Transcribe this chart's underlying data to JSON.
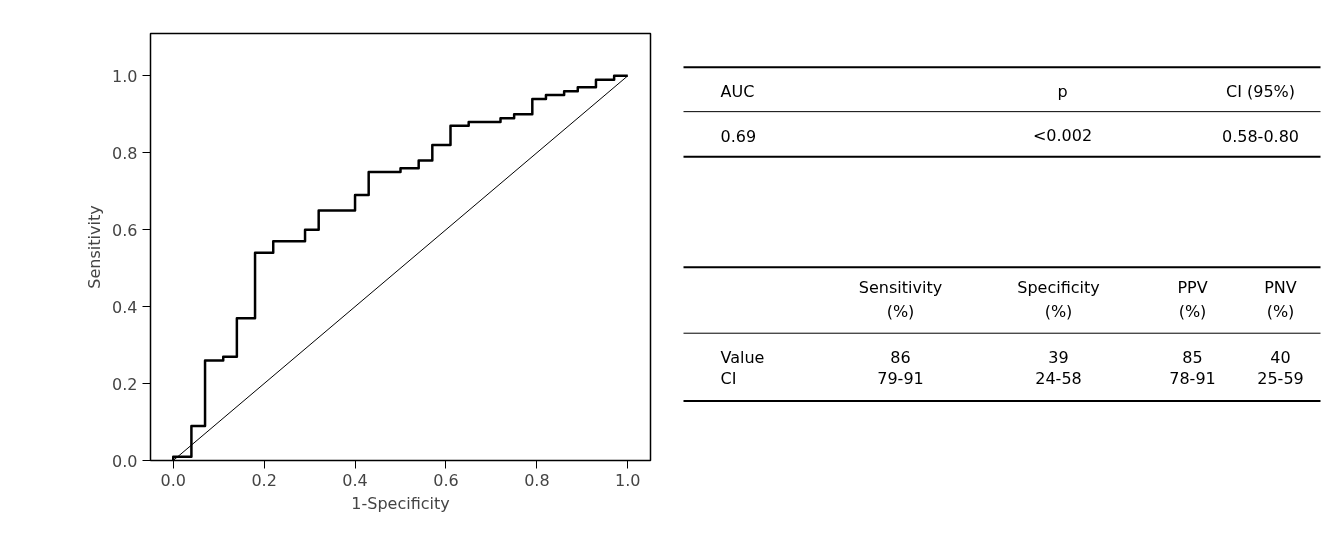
{
  "chart_data": [
    {
      "type": "step",
      "xlabel": "1-Specificity",
      "ylabel": "Sensitivity",
      "xlim": [
        -0.05,
        1.05
      ],
      "ylim": [
        0,
        1.11
      ],
      "xticks": [
        {
          "value": 0,
          "label": "0.0"
        },
        {
          "value": 0.2,
          "label": "0.2"
        },
        {
          "value": 0.4,
          "label": "0.4"
        },
        {
          "value": 0.6,
          "label": "0.6"
        },
        {
          "value": 0.8,
          "label": "0.8"
        },
        {
          "value": 1,
          "label": "1.0"
        }
      ],
      "yticks": [
        {
          "value": 0,
          "label": "0.0"
        },
        {
          "value": 0.2,
          "label": "0.2"
        },
        {
          "value": 0.4,
          "label": "0.4"
        },
        {
          "value": 0.6,
          "label": "0.6"
        },
        {
          "value": 0.8,
          "label": "0.8"
        },
        {
          "value": 1,
          "label": "1.0"
        }
      ],
      "grid": false,
      "series": [
        {
          "color": "#000000",
          "x": [
            0,
            0,
            0.04,
            0.07,
            0.11,
            0.14,
            0.18,
            0.22,
            0.29,
            0.32,
            0.4,
            0.43,
            0.5,
            0.54,
            0.57,
            0.61,
            0.65,
            0.72,
            0.75,
            0.79,
            0.82,
            0.86,
            0.89,
            0.93,
            0.97,
            1.0
          ],
          "values": [
            0,
            0.01,
            0.09,
            0.26,
            0.27,
            0.37,
            0.54,
            0.57,
            0.6,
            0.65,
            0.69,
            0.75,
            0.76,
            0.78,
            0.82,
            0.87,
            0.88,
            0.89,
            0.9,
            0.94,
            0.95,
            0.96,
            0.97,
            0.99,
            1.0,
            1.0
          ]
        },
        {
          "type": "line",
          "color": "#000000",
          "x": [
            0,
            1
          ],
          "values": [
            0,
            1
          ]
        }
      ]
    },
    {
      "type": "other",
      "annotations": [
        "AUC",
        "p",
        "CI (95%)",
        "0.69",
        "<0.002",
        "0.58-0.80",
        "Sensitivity\n(%)",
        "Specificity\n(%)",
        "PPV\n(%)",
        "PNV\n(%)",
        "Value",
        "86",
        "39",
        "85",
        "40",
        "CI",
        "79-91",
        "24-58",
        "78-91",
        "25-59"
      ]
    }
  ]
}
